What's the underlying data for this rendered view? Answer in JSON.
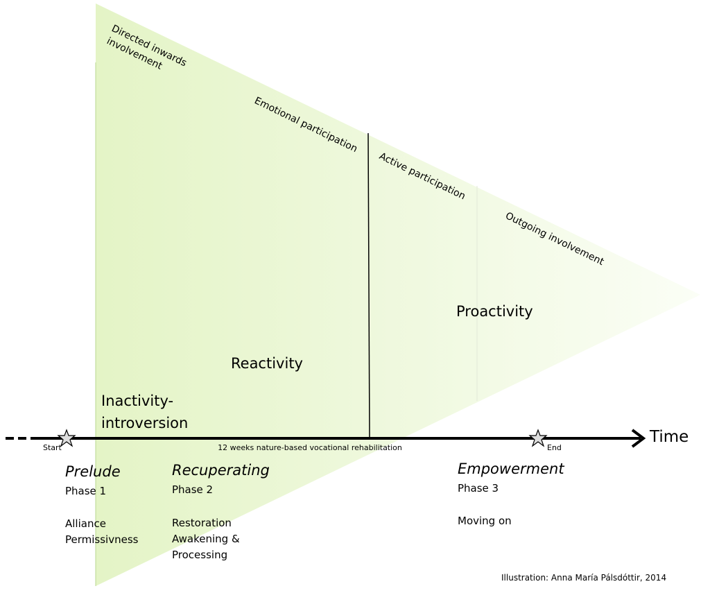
{
  "engagement_labels": [
    [
      "Directed inwards",
      "involvement"
    ],
    [
      "Emotional participation"
    ],
    [
      "Active participation"
    ],
    [
      "Outgoing involvement"
    ]
  ],
  "stages": {
    "proactivity": [
      "Proactivity"
    ],
    "reactivity": [
      "Reactivity"
    ],
    "inactivity": [
      "Inactivity-",
      "introversion"
    ]
  },
  "timeline": {
    "label": "Time",
    "start": "Start",
    "end": "End",
    "span": "12 weeks nature-based vocational rehabilitation"
  },
  "phases": [
    {
      "name": "Prelude",
      "number": "Phase 1",
      "lines": [
        "Alliance",
        "Permissivness"
      ]
    },
    {
      "name": "Recuperating",
      "number": "Phase 2",
      "lines": [
        "Restoration",
        "Awakening &",
        "Processing"
      ]
    },
    {
      "name": "Empowerment",
      "number": "Phase 3",
      "lines": [
        "Moving on"
      ]
    }
  ],
  "credit": "Illustration: Anna María Pálsdóttir, 2014"
}
